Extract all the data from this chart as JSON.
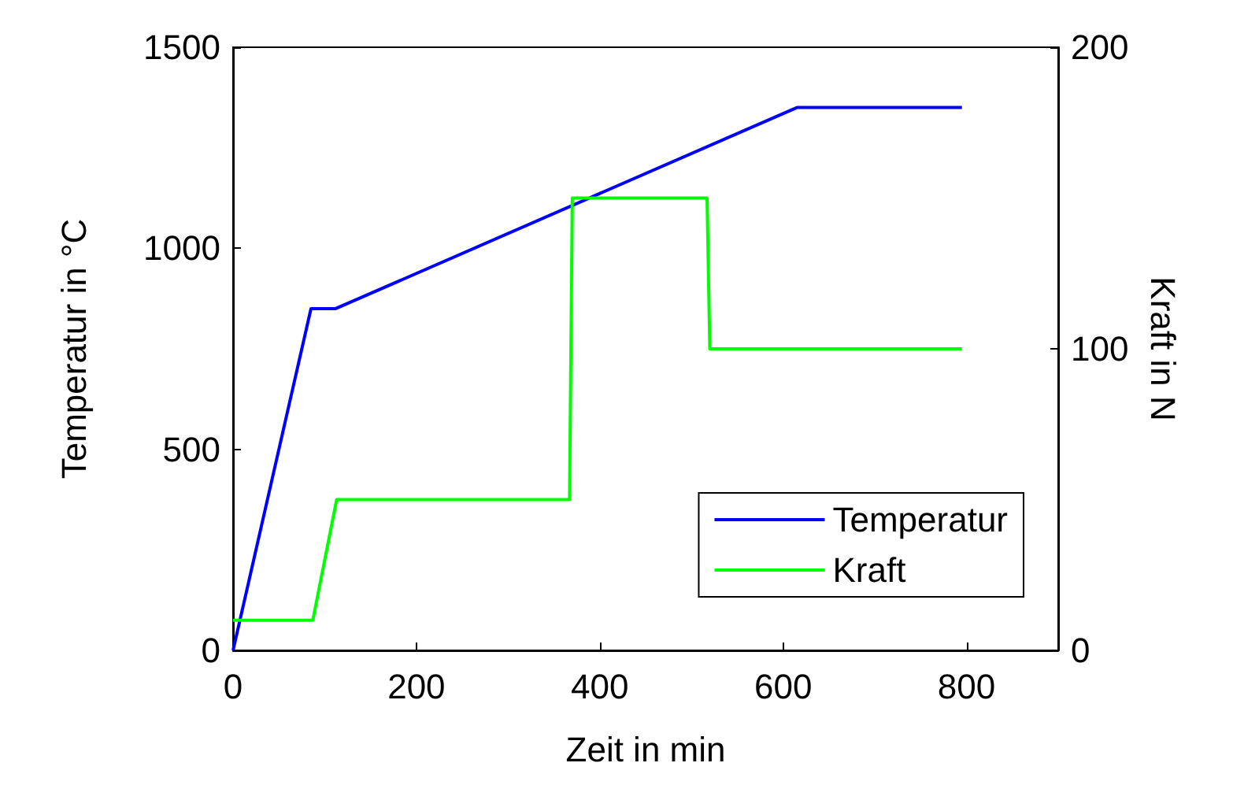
{
  "chart_data": {
    "type": "line",
    "xlabel": "Zeit in min",
    "ylabel": "Temperatur in °C",
    "y2label": "Kraft in N",
    "xlim": [
      0,
      900
    ],
    "xticks": [
      0,
      200,
      400,
      600,
      800
    ],
    "ylim": [
      0,
      1500
    ],
    "yticks": [
      0,
      500,
      1000,
      1500
    ],
    "y2lim": [
      0,
      200
    ],
    "y2ticks": [
      0,
      100,
      200
    ],
    "series": [
      {
        "name": "Temperatur",
        "color": "#0000ff",
        "x": [
          0,
          85,
          112,
          615,
          795
        ],
        "values": [
          0,
          850,
          850,
          1350,
          1350
        ]
      },
      {
        "name": "Kraft",
        "color": "#00ff00",
        "axis": "y2",
        "x": [
          0,
          87,
          113,
          367,
          370,
          517,
          520,
          795
        ],
        "values": [
          10,
          10,
          50,
          50,
          150,
          150,
          100,
          100
        ]
      }
    ],
    "legend": "bottom right",
    "grid": false,
    "marker": "none",
    "line_style": "solid"
  }
}
